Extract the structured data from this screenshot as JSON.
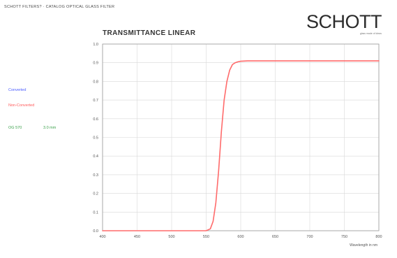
{
  "header": {
    "title": "SCHOTT FILTERS? · CATALOG OPTICAL GLASS FILTER"
  },
  "brand": {
    "name": "SCHOTT",
    "tagline": "glass made of ideas"
  },
  "legend": {
    "converted": "Converted",
    "non_converted": "Non-Converted",
    "filter_name": "OG 570",
    "thickness": "3.0 mm"
  },
  "colors": {
    "curve": "#ff6b6b",
    "grid": "#d8d8d8",
    "axis": "#9a9a9a",
    "converted": "#4a5bff",
    "non_converted": "#ff5a5a",
    "filter": "#3aa04a"
  },
  "chart_data": {
    "type": "line",
    "title": "TRANSMITTANCE LINEAR",
    "xlabel": "Wavelength in nm",
    "ylabel": "",
    "xlim": [
      400,
      800
    ],
    "ylim": [
      0,
      1.0
    ],
    "xticks": [
      "400",
      "450",
      "500",
      "550",
      "600",
      "650",
      "700",
      "750",
      "800"
    ],
    "yticks": [
      "0.0",
      "0.1",
      "0.2",
      "0.3",
      "0.4",
      "0.5",
      "0.6",
      "0.7",
      "0.8",
      "0.9",
      "1.0"
    ],
    "grid": true,
    "series": [
      {
        "name": "Non-Converted",
        "x": [
          400,
          500,
          550,
          556,
          560,
          564,
          568,
          572,
          576,
          580,
          584,
          588,
          592,
          596,
          600,
          610,
          620,
          650,
          700,
          750,
          800
        ],
        "values": [
          0.0,
          0.0,
          0.0,
          0.01,
          0.05,
          0.15,
          0.32,
          0.53,
          0.7,
          0.8,
          0.86,
          0.89,
          0.9,
          0.905,
          0.908,
          0.91,
          0.91,
          0.91,
          0.91,
          0.91,
          0.91
        ]
      }
    ]
  }
}
